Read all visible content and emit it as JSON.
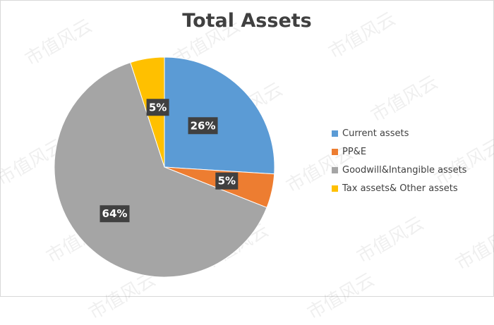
{
  "chart_data": {
    "type": "pie",
    "title": "Total Assets",
    "slices": [
      {
        "label": "Current assets",
        "value": 26,
        "display": "26%",
        "color": "#5b9bd5"
      },
      {
        "label": "PP&E",
        "value": 5,
        "display": "5%",
        "color": "#ed7d31"
      },
      {
        "label": "Goodwill&Intangible assets",
        "value": 64,
        "display": "64%",
        "color": "#a5a5a5"
      },
      {
        "label": "Tax assets& Other assets",
        "value": 5,
        "display": "5%",
        "color": "#ffc000"
      }
    ],
    "legend_position": "right"
  },
  "watermark_text": "市值风云"
}
